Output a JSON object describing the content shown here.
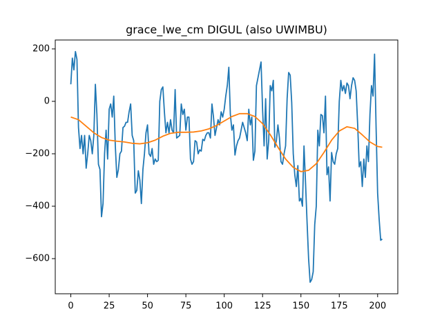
{
  "chart_data": {
    "type": "line",
    "title": "grace_lwe_cm DIGUL (also UWIMBU)",
    "xlim": [
      -10.15,
      213.15
    ],
    "ylim": [
      -734,
      234
    ],
    "xticks": [
      0,
      25,
      50,
      75,
      100,
      125,
      150,
      175,
      200
    ],
    "yticks": [
      {
        "value": -600,
        "label": "−600"
      },
      {
        "value": -400,
        "label": "−400"
      },
      {
        "value": -200,
        "label": "−200"
      },
      0,
      200
    ],
    "series": [
      {
        "color": "#1f77b4",
        "x": [
          0,
          1,
          2,
          3,
          4,
          5,
          6,
          7,
          8,
          9,
          10,
          11,
          12,
          13,
          14,
          15,
          16,
          17,
          18,
          19,
          20,
          21,
          22,
          23,
          24,
          25,
          26,
          27,
          28,
          29,
          30,
          31,
          32,
          33,
          34,
          35,
          36,
          37,
          38,
          39,
          40,
          41,
          42,
          43,
          44,
          45,
          46,
          47,
          48,
          49,
          50,
          51,
          52,
          53,
          54,
          55,
          56,
          57,
          58,
          59,
          60,
          61,
          62,
          63,
          64,
          65,
          66,
          67,
          68,
          69,
          70,
          71,
          72,
          73,
          74,
          75,
          76,
          77,
          78,
          79,
          80,
          81,
          82,
          83,
          84,
          85,
          86,
          87,
          88,
          89,
          90,
          91,
          92,
          93,
          94,
          95,
          96,
          97,
          98,
          99,
          100,
          101,
          102,
          103,
          104,
          105,
          106,
          107,
          108,
          109,
          110,
          111,
          112,
          113,
          114,
          115,
          116,
          117,
          118,
          119,
          120,
          121,
          122,
          123,
          124,
          125,
          126,
          127,
          128,
          129,
          130,
          131,
          132,
          133,
          134,
          135,
          136,
          137,
          138,
          139,
          140,
          141,
          142,
          143,
          144,
          145,
          146,
          147,
          148,
          149,
          150,
          151,
          152,
          153,
          154,
          155,
          156,
          157,
          158,
          159,
          160,
          161,
          162,
          163,
          164,
          165,
          166,
          167,
          168,
          169,
          170,
          171,
          172,
          173,
          174,
          175,
          176,
          177,
          178,
          179,
          180,
          181,
          182,
          183,
          184,
          185,
          186,
          187,
          188,
          189,
          190,
          191,
          192,
          193,
          194,
          195,
          196,
          197,
          198,
          199,
          200,
          201,
          202,
          203
        ],
        "values": [
          65,
          165,
          120,
          190,
          160,
          -100,
          -180,
          -130,
          -200,
          -130,
          -255,
          -200,
          -130,
          -150,
          -200,
          -130,
          65,
          -50,
          -240,
          -260,
          -440,
          -390,
          -200,
          -110,
          -220,
          -30,
          -10,
          -60,
          20,
          -170,
          -290,
          -260,
          -200,
          -190,
          -100,
          -95,
          -80,
          -80,
          -40,
          -10,
          -130,
          -150,
          -350,
          -340,
          -265,
          -300,
          -390,
          -260,
          -200,
          -120,
          -90,
          -200,
          -210,
          -180,
          -240,
          -220,
          -230,
          -225,
          0,
          45,
          55,
          -40,
          -120,
          -80,
          -120,
          -70,
          -110,
          -120,
          45,
          -140,
          -135,
          -130,
          -10,
          -50,
          -30,
          -110,
          -60,
          -60,
          -220,
          -240,
          -230,
          -150,
          -155,
          -200,
          -185,
          -190,
          -145,
          -150,
          -130,
          -120,
          -120,
          -140,
          -10,
          -60,
          -130,
          -100,
          -70,
          -90,
          -40,
          -60,
          -30,
          20,
          60,
          130,
          -50,
          -110,
          -90,
          -205,
          -170,
          -150,
          -140,
          -110,
          -80,
          -100,
          -120,
          -150,
          -30,
          -90,
          -60,
          -225,
          -190,
          60,
          90,
          120,
          150,
          -30,
          -170,
          10,
          -220,
          -150,
          60,
          40,
          80,
          -175,
          -150,
          -90,
          -140,
          -230,
          -240,
          -200,
          -170,
          10,
          110,
          100,
          -5,
          -200,
          -280,
          -325,
          -245,
          -380,
          -370,
          -400,
          -170,
          -310,
          -460,
          -600,
          -690,
          -680,
          -650,
          -470,
          -400,
          -110,
          -170,
          -50,
          -55,
          -120,
          20,
          -280,
          -250,
          -380,
          -195,
          -230,
          -240,
          -200,
          -180,
          0,
          80,
          40,
          60,
          30,
          70,
          60,
          10,
          60,
          90,
          80,
          40,
          -90,
          -250,
          -230,
          -325,
          -220,
          -290,
          -170,
          -230,
          -50,
          60,
          20,
          180,
          -100,
          -350,
          -450,
          -530,
          -525
        ]
      },
      {
        "color": "#ff7f0e",
        "x": [
          0,
          5,
          10,
          15,
          20,
          25,
          30,
          35,
          40,
          45,
          50,
          55,
          60,
          65,
          70,
          75,
          80,
          85,
          90,
          95,
          100,
          105,
          110,
          115,
          120,
          125,
          130,
          135,
          140,
          145,
          150,
          155,
          160,
          165,
          170,
          175,
          180,
          185,
          190,
          195,
          200,
          203
        ],
        "values": [
          -60,
          -70,
          -95,
          -120,
          -138,
          -148,
          -152,
          -155,
          -160,
          -162,
          -158,
          -148,
          -133,
          -122,
          -118,
          -118,
          -117,
          -113,
          -105,
          -92,
          -75,
          -58,
          -47,
          -47,
          -58,
          -85,
          -127,
          -175,
          -220,
          -252,
          -268,
          -263,
          -238,
          -195,
          -148,
          -113,
          -97,
          -103,
          -128,
          -155,
          -172,
          -175
        ]
      }
    ]
  }
}
